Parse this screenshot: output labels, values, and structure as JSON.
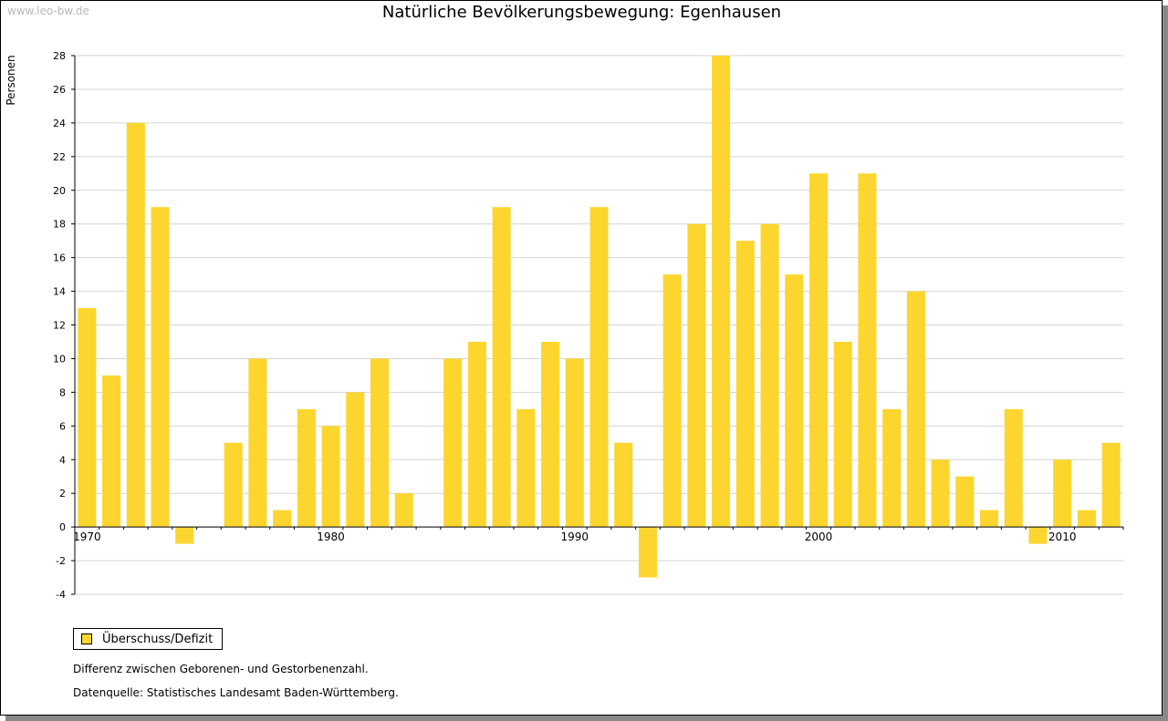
{
  "watermark": "www.leo-bw.de",
  "colors": {
    "bar": "#fcd62f",
    "grid": "#d4d4d4",
    "axis": "#000000"
  },
  "chart_data": {
    "type": "bar",
    "title": "Natürliche Bevölkerungsbewegung: Egenhausen",
    "ylabel": "Personen",
    "xlabel": "",
    "ylim": [
      -4,
      28
    ],
    "yticks": [
      -4,
      -2,
      0,
      2,
      4,
      6,
      8,
      10,
      12,
      14,
      16,
      18,
      20,
      22,
      24,
      26,
      28
    ],
    "xtick_labels": [
      "1970",
      "1980",
      "1990",
      "2000",
      "2010"
    ],
    "grid": true,
    "legend_position": "bottom-left",
    "categories": [
      1970,
      1971,
      1972,
      1973,
      1974,
      1975,
      1976,
      1977,
      1978,
      1979,
      1980,
      1981,
      1982,
      1983,
      1984,
      1985,
      1986,
      1987,
      1988,
      1989,
      1990,
      1991,
      1992,
      1993,
      1994,
      1995,
      1996,
      1997,
      1998,
      1999,
      2000,
      2001,
      2002,
      2003,
      2004,
      2005,
      2006,
      2007,
      2008,
      2009,
      2010,
      2011,
      2012
    ],
    "series": [
      {
        "name": "Überschuss/Defizit",
        "values": [
          13,
          9,
          24,
          19,
          -1,
          0,
          5,
          10,
          1,
          7,
          6,
          8,
          10,
          2,
          0,
          10,
          11,
          19,
          7,
          11,
          10,
          19,
          5,
          -3,
          15,
          18,
          28,
          17,
          18,
          15,
          21,
          11,
          21,
          7,
          14,
          4,
          3,
          1,
          7,
          -1,
          4,
          1,
          5
        ]
      }
    ]
  },
  "legend": {
    "label": "Überschuss/Defizit"
  },
  "notes": {
    "difference": "Differenz zwischen Geborenen- und Gestorbenenzahl.",
    "source": "Datenquelle: Statistisches Landesamt Baden-Württemberg."
  }
}
